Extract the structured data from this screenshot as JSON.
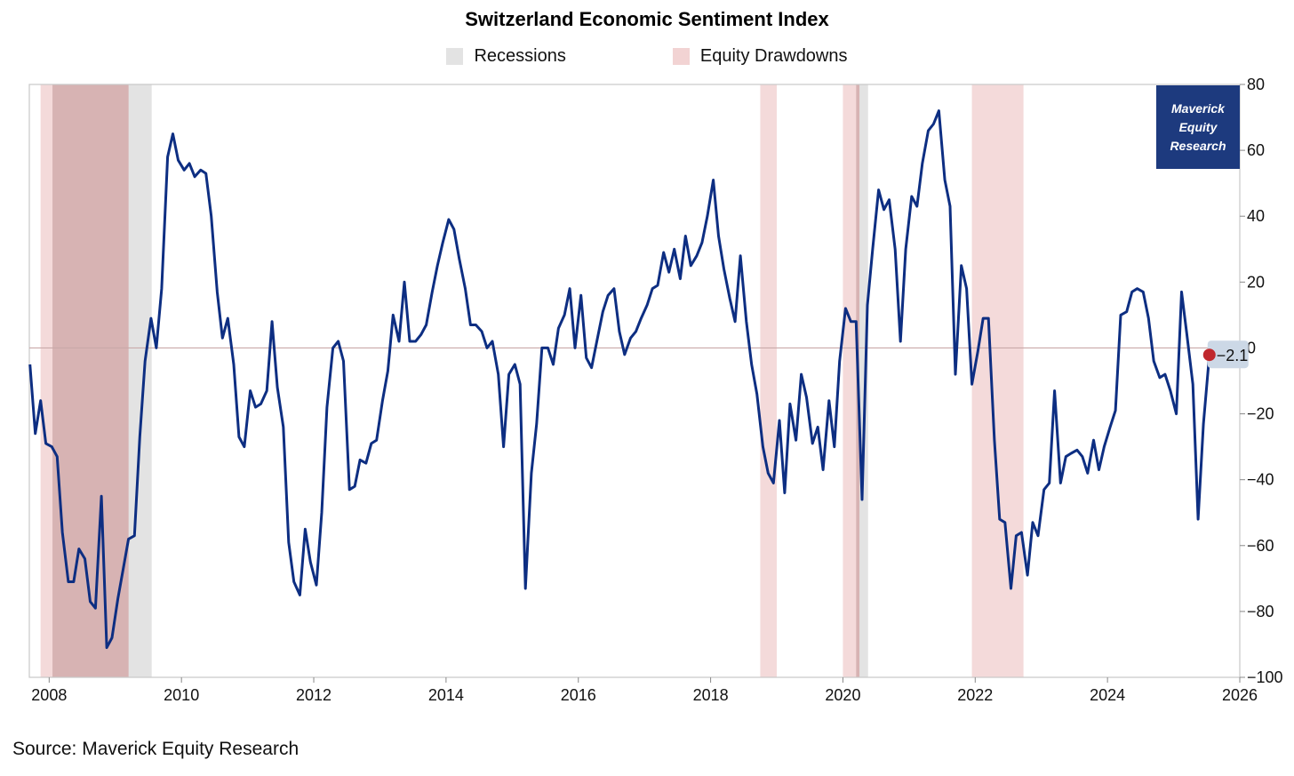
{
  "chart_data": {
    "type": "line",
    "title": "Switzerland Economic Sentiment Index",
    "legend": [
      {
        "label": "Recessions",
        "color": "#e3e3e3"
      },
      {
        "label": "Equity Drawdowns",
        "color": "#f2d3d3"
      }
    ],
    "legend_position": "top-center",
    "xlabel": "",
    "ylabel": "",
    "xlim": [
      2007.7,
      2026.0
    ],
    "ylim": [
      -100,
      80
    ],
    "x_ticks": [
      2008,
      2010,
      2012,
      2014,
      2016,
      2018,
      2020,
      2022,
      2024,
      2026
    ],
    "y_ticks": [
      80,
      60,
      40,
      20,
      0,
      -20,
      -40,
      -60,
      -80,
      -100
    ],
    "zero_line": true,
    "recessions": [
      [
        2008.05,
        2009.55
      ],
      [
        2020.2,
        2020.38
      ]
    ],
    "equity_drawdowns": [
      [
        2007.87,
        2009.2
      ],
      [
        2018.75,
        2019.0
      ],
      [
        2020.0,
        2020.25
      ],
      [
        2021.95,
        2022.73
      ]
    ],
    "series": [
      {
        "name": "Switzerland Economic Sentiment Index",
        "color": "#0d2e82",
        "x": [
          2007.71,
          2007.79,
          2007.87,
          2007.95,
          2008.04,
          2008.12,
          2008.2,
          2008.29,
          2008.37,
          2008.45,
          2008.54,
          2008.62,
          2008.7,
          2008.79,
          2008.87,
          2008.95,
          2009.04,
          2009.12,
          2009.2,
          2009.29,
          2009.37,
          2009.45,
          2009.54,
          2009.62,
          2009.7,
          2009.79,
          2009.87,
          2009.95,
          2010.04,
          2010.12,
          2010.2,
          2010.29,
          2010.37,
          2010.45,
          2010.54,
          2010.62,
          2010.7,
          2010.79,
          2010.87,
          2010.95,
          2011.04,
          2011.12,
          2011.2,
          2011.29,
          2011.37,
          2011.45,
          2011.54,
          2011.62,
          2011.7,
          2011.79,
          2011.87,
          2011.95,
          2012.04,
          2012.12,
          2012.2,
          2012.29,
          2012.37,
          2012.45,
          2012.54,
          2012.62,
          2012.7,
          2012.79,
          2012.87,
          2012.95,
          2013.04,
          2013.12,
          2013.2,
          2013.29,
          2013.37,
          2013.45,
          2013.54,
          2013.62,
          2013.7,
          2013.79,
          2013.87,
          2013.95,
          2014.04,
          2014.12,
          2014.2,
          2014.29,
          2014.37,
          2014.45,
          2014.54,
          2014.62,
          2014.7,
          2014.79,
          2014.87,
          2014.95,
          2015.04,
          2015.12,
          2015.2,
          2015.29,
          2015.37,
          2015.45,
          2015.54,
          2015.62,
          2015.7,
          2015.79,
          2015.87,
          2015.95,
          2016.04,
          2016.12,
          2016.2,
          2016.29,
          2016.37,
          2016.45,
          2016.54,
          2016.62,
          2016.7,
          2016.79,
          2016.87,
          2016.95,
          2017.04,
          2017.12,
          2017.2,
          2017.29,
          2017.37,
          2017.45,
          2017.54,
          2017.62,
          2017.7,
          2017.79,
          2017.87,
          2017.95,
          2018.04,
          2018.12,
          2018.2,
          2018.29,
          2018.37,
          2018.45,
          2018.54,
          2018.62,
          2018.7,
          2018.79,
          2018.87,
          2018.95,
          2019.04,
          2019.12,
          2019.2,
          2019.29,
          2019.37,
          2019.45,
          2019.54,
          2019.62,
          2019.7,
          2019.79,
          2019.87,
          2019.95,
          2020.04,
          2020.12,
          2020.2,
          2020.29,
          2020.37,
          2020.45,
          2020.54,
          2020.62,
          2020.7,
          2020.79,
          2020.87,
          2020.95,
          2021.04,
          2021.12,
          2021.2,
          2021.29,
          2021.37,
          2021.45,
          2021.54,
          2021.62,
          2021.7,
          2021.79,
          2021.87,
          2021.95,
          2022.04,
          2022.12,
          2022.2,
          2022.29,
          2022.37,
          2022.45,
          2022.54,
          2022.62,
          2022.7,
          2022.79,
          2022.87,
          2022.95,
          2023.04,
          2023.12,
          2023.2,
          2023.29,
          2023.37,
          2023.45,
          2023.54,
          2023.62,
          2023.7,
          2023.79,
          2023.87,
          2023.95,
          2024.04,
          2024.12,
          2024.2,
          2024.29,
          2024.37,
          2024.45,
          2024.54,
          2024.62,
          2024.7,
          2024.79,
          2024.87,
          2024.95,
          2025.04,
          2025.12,
          2025.2,
          2025.29,
          2025.37,
          2025.45,
          2025.54
        ],
        "values": [
          -5,
          -26,
          -16,
          -29,
          -30,
          -33,
          -56,
          -71,
          -71,
          -61,
          -64,
          -77,
          -79,
          -45,
          -91,
          -88,
          -76,
          -67,
          -58,
          -57,
          -27,
          -4,
          9,
          0,
          18,
          58,
          65,
          57,
          54,
          56,
          52,
          54,
          53,
          40,
          17,
          3,
          9,
          -5,
          -27,
          -30,
          -13,
          -18,
          -17,
          -13,
          8,
          -12,
          -24,
          -59,
          -71,
          -75,
          -55,
          -65,
          -72,
          -50,
          -18,
          0,
          2,
          -4,
          -43,
          -42,
          -34,
          -35,
          -29,
          -28,
          -16,
          -7,
          10,
          2,
          20,
          2,
          2,
          4,
          7,
          17,
          25,
          32,
          39,
          36,
          27,
          18,
          7,
          7,
          5,
          0,
          2,
          -8,
          -30,
          -8,
          -5,
          -11,
          -73,
          -38,
          -23,
          0,
          0,
          -5,
          6,
          10,
          18,
          0,
          16,
          -3,
          -6,
          3,
          11,
          16,
          18,
          5,
          -2,
          3,
          5,
          9,
          13,
          18,
          19,
          29,
          23,
          30,
          21,
          34,
          25,
          28,
          32,
          40,
          51,
          34,
          24,
          15,
          8,
          28,
          8,
          -5,
          -14,
          -30,
          -38,
          -41,
          -22,
          -44,
          -17,
          -28,
          -8,
          -15,
          -29,
          -24,
          -37,
          -16,
          -30,
          -4,
          12,
          8,
          8,
          -46,
          13,
          30,
          48,
          42,
          45,
          30,
          2,
          30,
          46,
          43,
          56,
          66,
          68,
          72,
          51,
          43,
          -8,
          25,
          18,
          -11,
          -1,
          9,
          9,
          -28,
          -52,
          -53,
          -73,
          -57,
          -56,
          -69,
          -53,
          -57,
          -43,
          -41,
          -13,
          -41,
          -33,
          -32,
          -31,
          -33,
          -38,
          -28,
          -37,
          -30,
          -24,
          -19,
          10,
          11,
          17,
          18,
          17,
          9,
          -4,
          -9,
          -8,
          -13,
          -20,
          17,
          4,
          -11,
          -52,
          -23,
          -2.1
        ]
      }
    ],
    "last_value_label": "−2.1",
    "last_value_color": "#c0282d"
  },
  "branding": {
    "line1": "Maverick",
    "line2": "Equity",
    "line3": "Research",
    "bg_color": "#1d3a7e"
  },
  "source": "Source: Maverick Equity Research"
}
